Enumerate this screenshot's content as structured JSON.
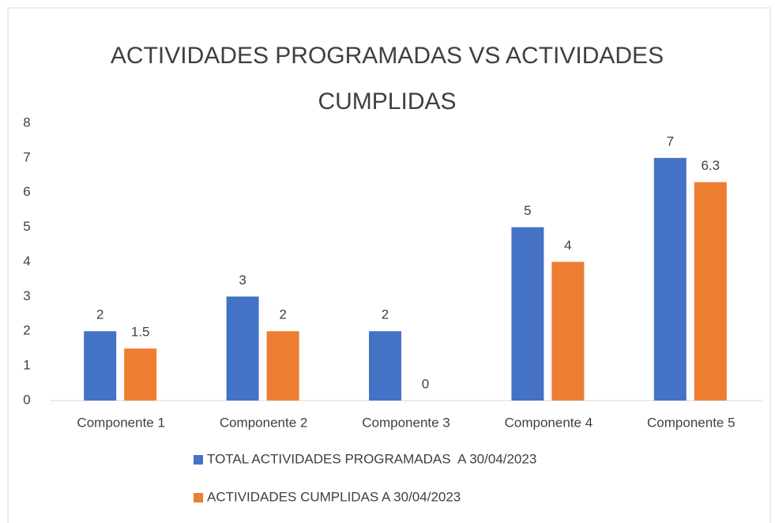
{
  "chart_data": {
    "type": "bar",
    "title": "ACTIVIDADES PROGRAMADAS VS ACTIVIDADES CUMPLIDAS",
    "categories": [
      "Componente 1",
      "Componente 2",
      "Componente 3",
      "Componente 4",
      "Componente 5"
    ],
    "series": [
      {
        "name": "TOTAL ACTIVIDADES PROGRAMADAS  A 30/04/2023",
        "color": "#4472c4",
        "values": [
          2,
          3,
          2,
          5,
          7
        ]
      },
      {
        "name": "ACTIVIDADES CUMPLIDAS A 30/04/2023",
        "color": "#ed7d31",
        "values": [
          1.5,
          2,
          0,
          4,
          6.3
        ]
      }
    ],
    "ylim": [
      0,
      8
    ],
    "yticks": [
      0,
      1,
      2,
      3,
      4,
      5,
      6,
      7,
      8
    ],
    "grid": false,
    "legend": "bottom"
  }
}
